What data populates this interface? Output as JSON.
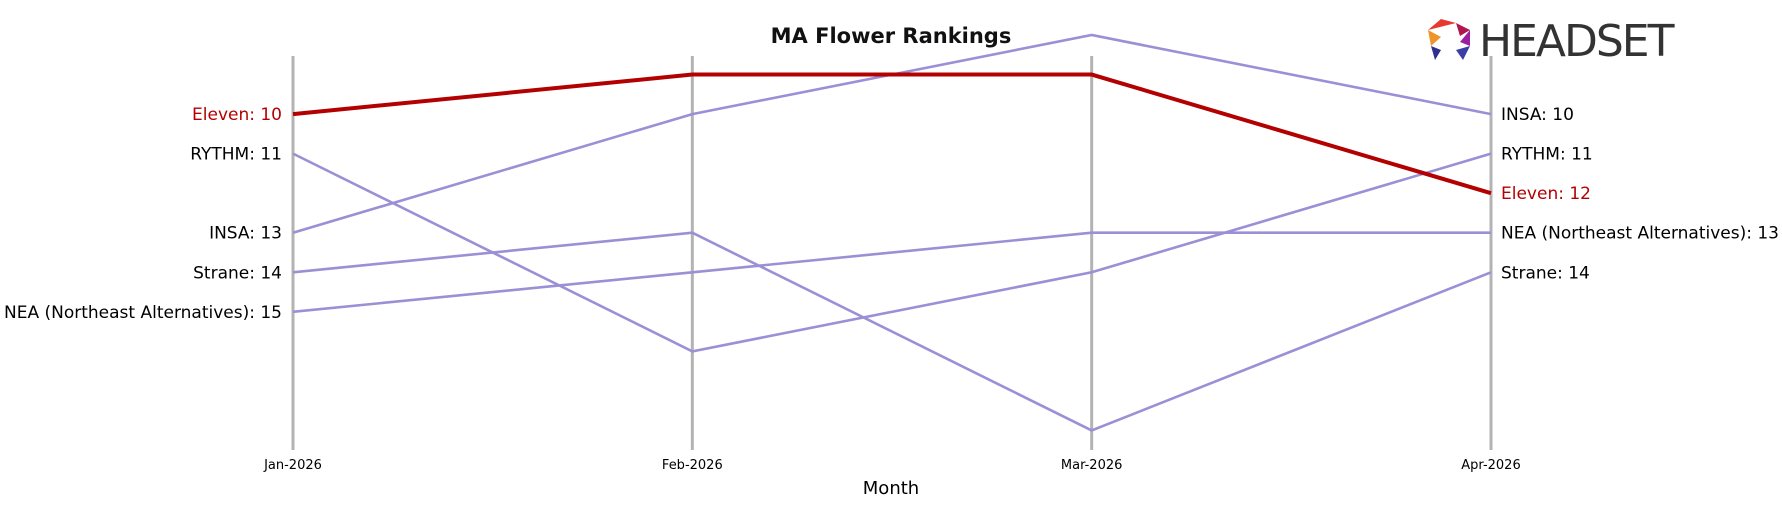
{
  "brand": {
    "name": "HEADSET",
    "logo_icon": "headset-hexagon-logo-icon",
    "logo_colors": [
      "#e63a2e",
      "#f0932b",
      "#b0174f",
      "#9b1fa3",
      "#2e2f8f",
      "#3a3fa8"
    ]
  },
  "chart_data": {
    "type": "line",
    "title": "MA Flower Rankings",
    "xlabel": "Month",
    "ylabel": "",
    "categories": [
      "Jan-2026",
      "Feb-2026",
      "Mar-2026",
      "Apr-2026"
    ],
    "y_inverted": true,
    "ylim": [
      19,
      8
    ],
    "grid": "vertical month guides",
    "highlight_color": "#b30000",
    "other_color": "#9b8fd6",
    "guide_color": "#b3b3b3",
    "series": [
      {
        "name": "Eleven",
        "values": [
          10,
          9,
          9,
          12
        ],
        "highlight": true
      },
      {
        "name": "RYTHM",
        "values": [
          11,
          16,
          14,
          11
        ]
      },
      {
        "name": "INSA",
        "values": [
          13,
          10,
          8,
          10
        ]
      },
      {
        "name": "Strane",
        "values": [
          14,
          13,
          18,
          14
        ]
      },
      {
        "name": "NEA (Northeast Alternatives)",
        "values": [
          15,
          14,
          13,
          13
        ]
      }
    ],
    "left_labels": [
      {
        "text": "Eleven: 10",
        "series": "Eleven"
      },
      {
        "text": "RYTHM: 11",
        "series": "RYTHM"
      },
      {
        "text": "INSA: 13",
        "series": "INSA"
      },
      {
        "text": "Strane: 14",
        "series": "Strane"
      },
      {
        "text": "NEA (Northeast Alternatives): 15",
        "series": "NEA (Northeast Alternatives)"
      }
    ],
    "right_labels": [
      {
        "text": "INSA: 10",
        "series": "INSA"
      },
      {
        "text": "RYTHM: 11",
        "series": "RYTHM"
      },
      {
        "text": "Eleven: 12",
        "series": "Eleven"
      },
      {
        "text": "NEA (Northeast Alternatives): 13",
        "series": "NEA (Northeast Alternatives)"
      },
      {
        "text": "Strane: 14",
        "series": "Strane"
      }
    ]
  }
}
